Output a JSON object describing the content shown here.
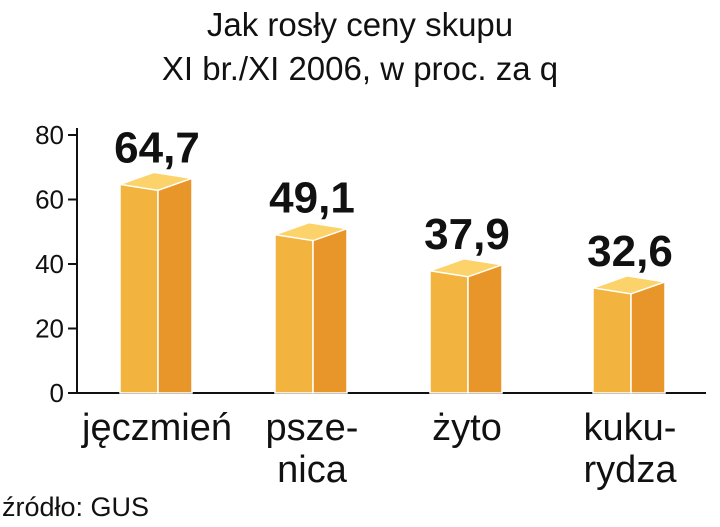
{
  "chart_data": {
    "type": "bar",
    "title": [
      "Jak rosły ceny skupu",
      "XI br./XI 2006, w proc. za q"
    ],
    "categories": [
      [
        "jęczmień"
      ],
      [
        "psze-",
        "nica"
      ],
      [
        "żyto"
      ],
      [
        "kuku-",
        "rydza"
      ]
    ],
    "values": [
      64.7,
      49.1,
      37.9,
      32.6
    ],
    "value_labels": [
      "64,7",
      "49,1",
      "37,9",
      "32,6"
    ],
    "color": "#f3b43f",
    "ylim": [
      0,
      80
    ],
    "yticks": [
      0,
      20,
      40,
      60,
      80
    ],
    "source": "źródło: GUS"
  }
}
